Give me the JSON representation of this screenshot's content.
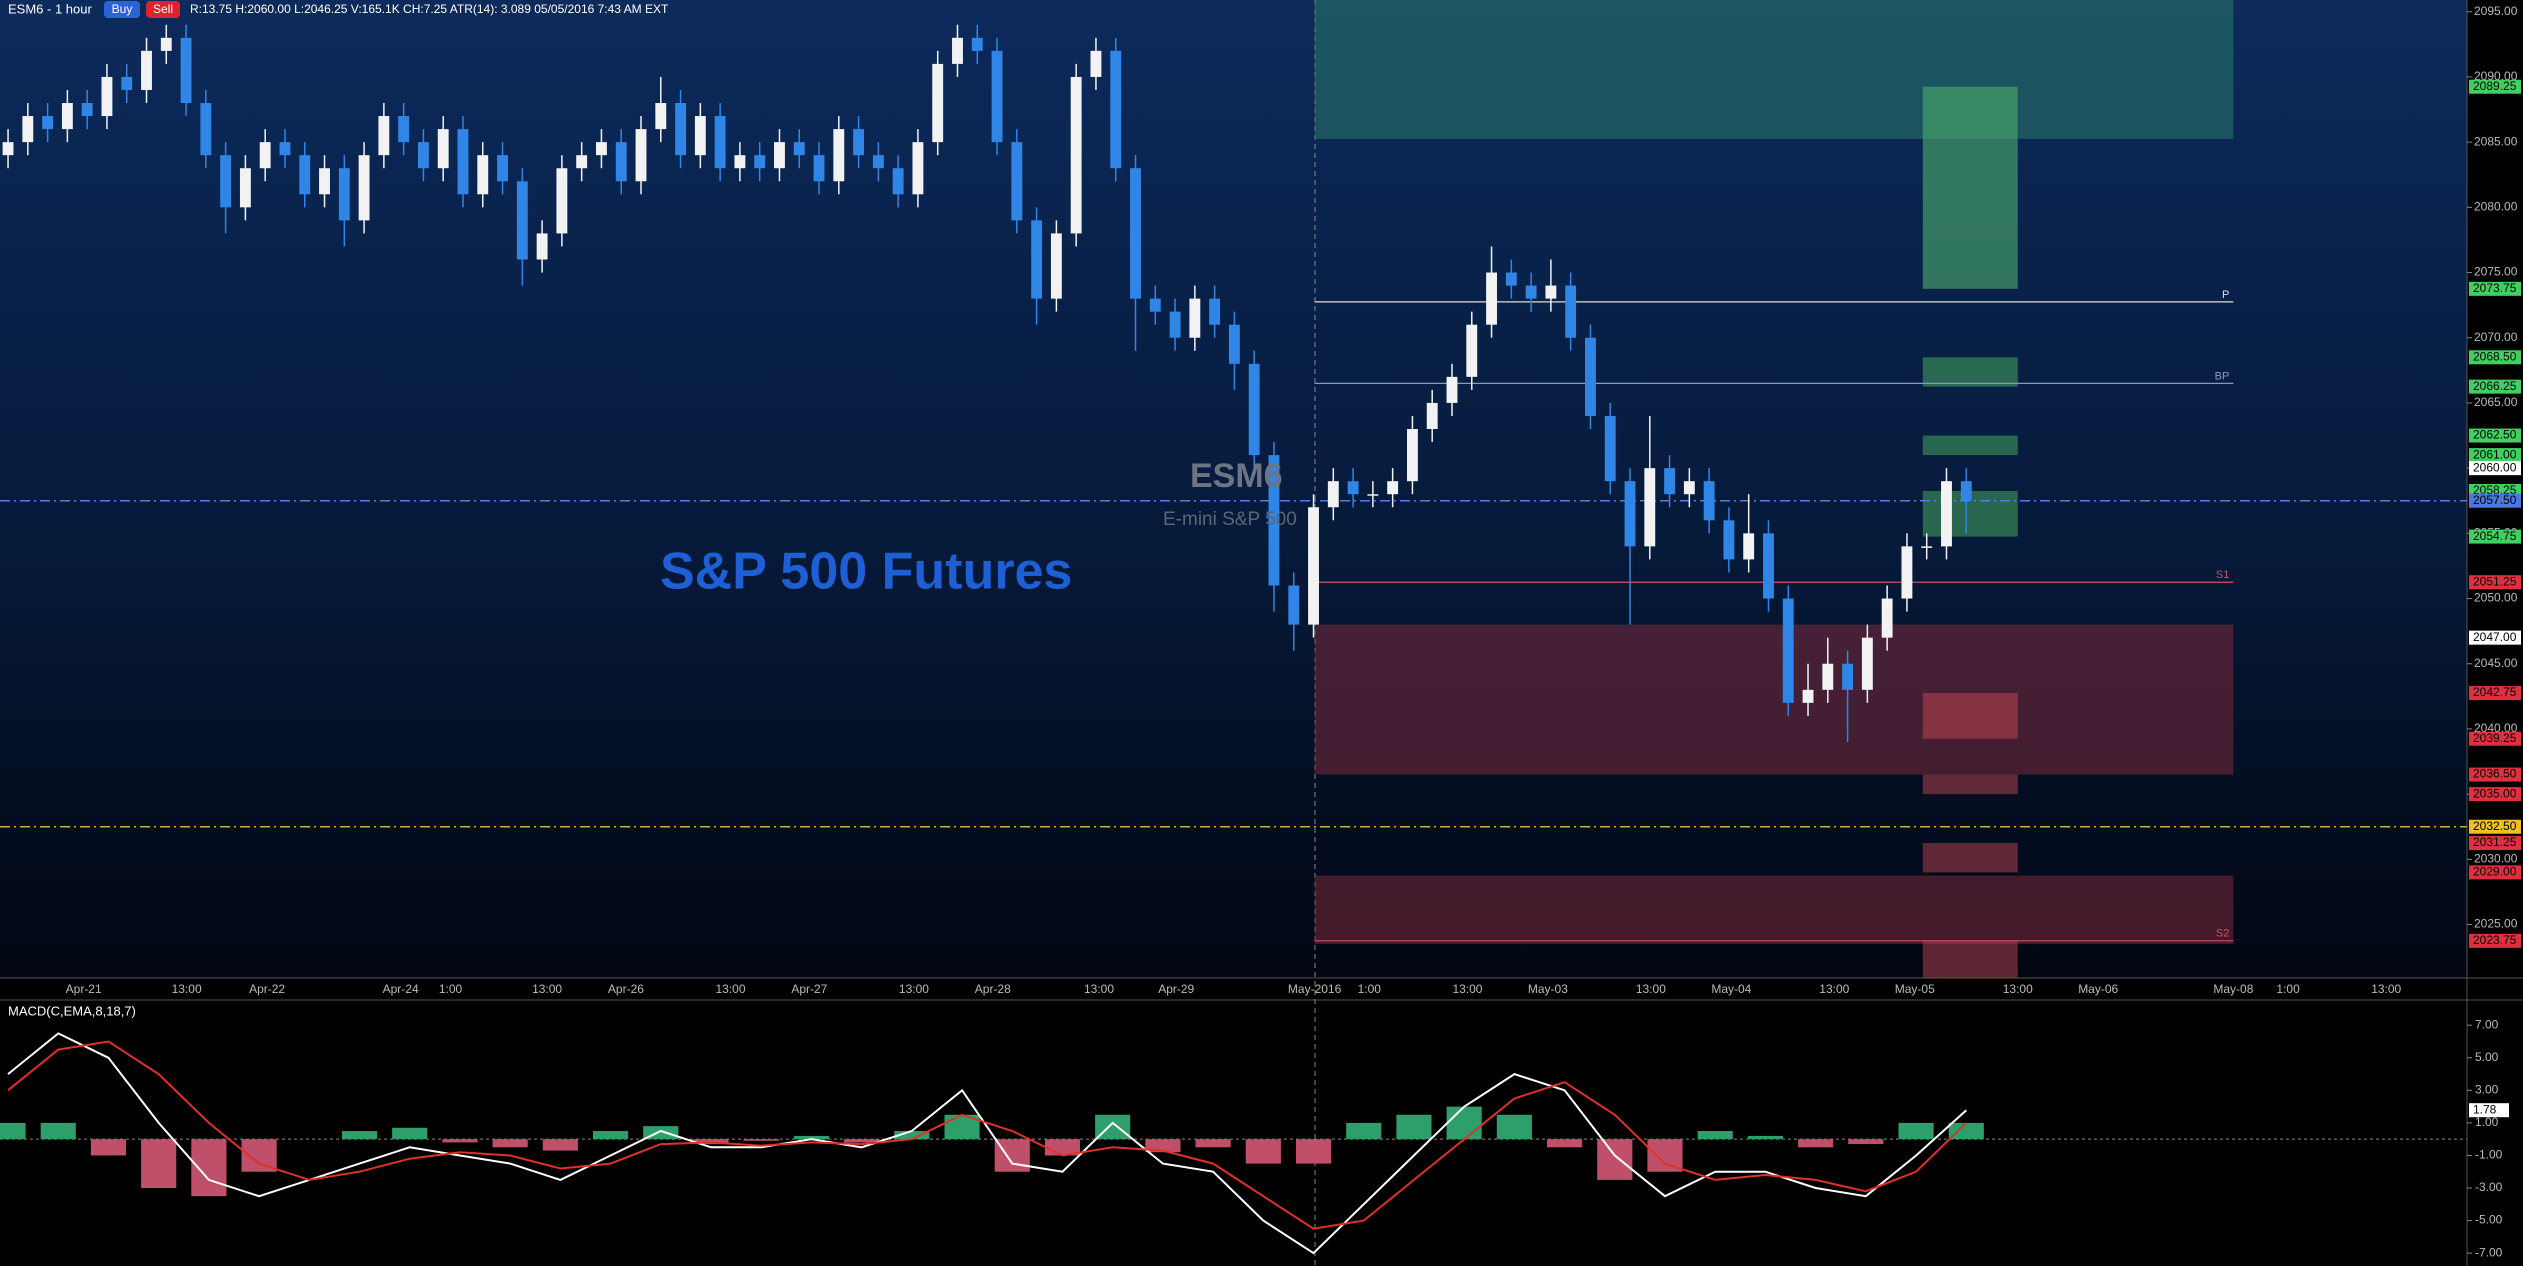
{
  "chart_data": [
    {
      "type": "candlestick",
      "symbol": "ESM6 - 1 hour",
      "buy": "Buy",
      "sell": "Sell",
      "info": "R:13.75  H:2060.00  L:2046.25  V:165.1K  CH:7.25  ATR(14): 3.089  05/05/2016 7:43 AM  EXT",
      "title": "S&P 500 Futures",
      "watermark": [
        "ESM6",
        "E-mini S&P 500"
      ],
      "up_color": "#f2f2f2",
      "down_color": "#2f86e6",
      "ylim": [
        2020.9,
        2095.9
      ],
      "yticks": [
        {
          "value": 2095,
          "label": "2095.00"
        },
        {
          "value": 2090,
          "label": "2090.00"
        },
        {
          "value": 2085,
          "label": "2085.00"
        },
        {
          "value": 2080,
          "label": "2080.00"
        },
        {
          "value": 2075,
          "label": "2075.00"
        },
        {
          "value": 2070,
          "label": "2070.00"
        },
        {
          "value": 2065,
          "label": "2065.00"
        },
        {
          "value": 2060,
          "label": "2060.00"
        },
        {
          "value": 2055,
          "label": "2055.00"
        },
        {
          "value": 2050,
          "label": "2050.00"
        },
        {
          "value": 2045,
          "label": "2045.00"
        },
        {
          "value": 2040,
          "label": "2040.00"
        },
        {
          "value": 2035,
          "label": "2035.00"
        },
        {
          "value": 2030,
          "label": "2030.00"
        },
        {
          "value": 2025,
          "label": "2025.00"
        }
      ],
      "xtick_labels": [
        "Apr-21",
        "13:00",
        "Apr-22",
        "Apr-24",
        "1:00",
        "13:00",
        "Apr-26",
        "13:00",
        "Apr-27",
        "13:00",
        "Apr-28",
        "13:00",
        "Apr-29",
        "May-2016",
        "1:00",
        "13:00",
        "May-03",
        "13:00",
        "May-04",
        "13:00",
        "May-05",
        "13:00",
        "May-06",
        "May-08",
        "1:00",
        "13:00"
      ],
      "ohlc": [
        [
          2084,
          2086,
          2083,
          2085
        ],
        [
          2085,
          2088,
          2084,
          2087
        ],
        [
          2087,
          2088,
          2085,
          2086
        ],
        [
          2086,
          2089,
          2085,
          2088
        ],
        [
          2088,
          2089,
          2086,
          2087
        ],
        [
          2087,
          2091,
          2086,
          2090
        ],
        [
          2090,
          2091,
          2088,
          2089
        ],
        [
          2089,
          2093,
          2088,
          2092
        ],
        [
          2092,
          2094,
          2091,
          2093
        ],
        [
          2093,
          2094,
          2087,
          2088
        ],
        [
          2088,
          2089,
          2083,
          2084
        ],
        [
          2084,
          2085,
          2078,
          2080
        ],
        [
          2080,
          2084,
          2079,
          2083
        ],
        [
          2083,
          2086,
          2082,
          2085
        ],
        [
          2085,
          2086,
          2083,
          2084
        ],
        [
          2084,
          2085,
          2080,
          2081
        ],
        [
          2081,
          2084,
          2080,
          2083
        ],
        [
          2083,
          2084,
          2077,
          2079
        ],
        [
          2079,
          2085,
          2078,
          2084
        ],
        [
          2084,
          2088,
          2083,
          2087
        ],
        [
          2087,
          2088,
          2084,
          2085
        ],
        [
          2085,
          2086,
          2082,
          2083
        ],
        [
          2083,
          2087,
          2082,
          2086
        ],
        [
          2086,
          2087,
          2080,
          2081
        ],
        [
          2081,
          2085,
          2080,
          2084
        ],
        [
          2084,
          2085,
          2081,
          2082
        ],
        [
          2082,
          2083,
          2074,
          2076
        ],
        [
          2076,
          2079,
          2075,
          2078
        ],
        [
          2078,
          2084,
          2077,
          2083
        ],
        [
          2083,
          2085,
          2082,
          2084
        ],
        [
          2084,
          2086,
          2083,
          2085
        ],
        [
          2085,
          2086,
          2081,
          2082
        ],
        [
          2082,
          2087,
          2081,
          2086
        ],
        [
          2086,
          2090,
          2085,
          2088
        ],
        [
          2088,
          2089,
          2083,
          2084
        ],
        [
          2084,
          2088,
          2083,
          2087
        ],
        [
          2087,
          2088,
          2082,
          2083
        ],
        [
          2083,
          2085,
          2082,
          2084
        ],
        [
          2084,
          2085,
          2082,
          2083
        ],
        [
          2083,
          2086,
          2082,
          2085
        ],
        [
          2085,
          2086,
          2083,
          2084
        ],
        [
          2084,
          2085,
          2081,
          2082
        ],
        [
          2082,
          2087,
          2081,
          2086
        ],
        [
          2086,
          2087,
          2083,
          2084
        ],
        [
          2084,
          2085,
          2082,
          2083
        ],
        [
          2083,
          2084,
          2080,
          2081
        ],
        [
          2081,
          2086,
          2080,
          2085
        ],
        [
          2085,
          2092,
          2084,
          2091
        ],
        [
          2091,
          2094,
          2090,
          2093
        ],
        [
          2093,
          2094,
          2091,
          2092
        ],
        [
          2092,
          2093,
          2084,
          2085
        ],
        [
          2085,
          2086,
          2078,
          2079
        ],
        [
          2079,
          2080,
          2071,
          2073
        ],
        [
          2073,
          2079,
          2072,
          2078
        ],
        [
          2078,
          2091,
          2077,
          2090
        ],
        [
          2090,
          2093,
          2089,
          2092
        ],
        [
          2092,
          2093,
          2082,
          2083
        ],
        [
          2083,
          2084,
          2069,
          2073
        ],
        [
          2073,
          2074,
          2071,
          2072
        ],
        [
          2072,
          2073,
          2069,
          2070
        ],
        [
          2070,
          2074,
          2069,
          2073
        ],
        [
          2073,
          2074,
          2070,
          2071
        ],
        [
          2071,
          2072,
          2066,
          2068
        ],
        [
          2068,
          2069,
          2060,
          2061
        ],
        [
          2061,
          2062,
          2049,
          2051
        ],
        [
          2051,
          2052,
          2046,
          2048
        ],
        [
          2048,
          2058,
          2047,
          2057
        ],
        [
          2057,
          2060,
          2056,
          2059
        ],
        [
          2059,
          2060,
          2057,
          2058
        ],
        [
          2058,
          2059,
          2057,
          2058
        ],
        [
          2058,
          2060,
          2057,
          2059
        ],
        [
          2059,
          2064,
          2058,
          2063
        ],
        [
          2063,
          2066,
          2062,
          2065
        ],
        [
          2065,
          2068,
          2064,
          2067
        ],
        [
          2067,
          2072,
          2066,
          2071
        ],
        [
          2071,
          2077,
          2070,
          2075
        ],
        [
          2075,
          2076,
          2073,
          2074
        ],
        [
          2074,
          2075,
          2072,
          2073
        ],
        [
          2073,
          2076,
          2072,
          2074
        ],
        [
          2074,
          2075,
          2069,
          2070
        ],
        [
          2070,
          2071,
          2063,
          2064
        ],
        [
          2064,
          2065,
          2058,
          2059
        ],
        [
          2059,
          2060,
          2048,
          2054
        ],
        [
          2054,
          2064,
          2053,
          2060
        ],
        [
          2060,
          2061,
          2057,
          2058
        ],
        [
          2058,
          2060,
          2057,
          2059
        ],
        [
          2059,
          2060,
          2055,
          2056
        ],
        [
          2056,
          2057,
          2052,
          2053
        ],
        [
          2053,
          2058,
          2052,
          2055
        ],
        [
          2055,
          2056,
          2049,
          2050
        ],
        [
          2050,
          2051,
          2041,
          2042
        ],
        [
          2042,
          2045,
          2041,
          2043
        ],
        [
          2043,
          2047,
          2042,
          2045
        ],
        [
          2045,
          2046,
          2039,
          2043
        ],
        [
          2043,
          2048,
          2042,
          2047
        ],
        [
          2047,
          2051,
          2046,
          2050
        ],
        [
          2050,
          2055,
          2049,
          2054
        ],
        [
          2054,
          2055,
          2053,
          2054
        ],
        [
          2054,
          2060,
          2053,
          2059
        ],
        [
          2059,
          2060,
          2055,
          2057.5
        ]
      ],
      "zones": [
        {
          "from": 2085.25,
          "to": 2095.9,
          "color": "#2a7a6a"
        },
        {
          "from": 2036.5,
          "to": 2048,
          "color": "#7a2a3a"
        },
        {
          "from": 2023.5,
          "to": 2028.75,
          "color": "#7a2a3a"
        }
      ],
      "targets": [
        {
          "from": 2073.75,
          "to": 2089.25,
          "color": "#4caf6a"
        },
        {
          "from": 2066.25,
          "to": 2068.5,
          "color": "#3f9a5a"
        },
        {
          "from": 2061,
          "to": 2062.5,
          "color": "#3f9a5a"
        },
        {
          "from": 2054.75,
          "to": 2058.25,
          "color": "#3f9a5a"
        },
        {
          "from": 2039.25,
          "to": 2042.75,
          "color": "#b0404e"
        },
        {
          "from": 2035,
          "to": 2036.5,
          "color": "#a03a48"
        },
        {
          "from": 2029,
          "to": 2031.25,
          "color": "#a03a48"
        },
        {
          "from": 2020.9,
          "to": 2023.75,
          "color": "#a03a48"
        }
      ],
      "hlines": [
        {
          "value": 2072.75,
          "label": "P",
          "color": "#dddddd"
        },
        {
          "value": 2066.5,
          "label": "BP",
          "color": "#8899bb"
        },
        {
          "value": 2051.25,
          "label": "S1",
          "color": "#d0506a"
        },
        {
          "value": 2023.75,
          "label": "S2",
          "color": "#d0506a"
        }
      ],
      "full_lines": [
        {
          "value": 2057.5,
          "color": "#5a7adf"
        },
        {
          "value": 2032.5,
          "color": "#c8b040"
        }
      ],
      "levels": [
        {
          "value": 2089.25,
          "label": "2089.25",
          "color": "#3fd060"
        },
        {
          "value": 2073.75,
          "label": "2073.75",
          "color": "#3fd060"
        },
        {
          "value": 2068.5,
          "label": "2068.50",
          "color": "#3fd060"
        },
        {
          "value": 2066.25,
          "label": "2066.25",
          "color": "#3fd060"
        },
        {
          "value": 2062.5,
          "label": "2062.50",
          "color": "#3fd060"
        },
        {
          "value": 2061,
          "label": "2061.00",
          "color": "#3fd060"
        },
        {
          "value": 2060,
          "label": "2060.00",
          "color": "#ffffff"
        },
        {
          "value": 2058.25,
          "label": "2058.25",
          "color": "#3fd060"
        },
        {
          "value": 2057.5,
          "label": "2057.50",
          "color": "#4a78e0"
        },
        {
          "value": 2054.75,
          "label": "2054.75",
          "color": "#3fd060"
        },
        {
          "value": 2051.25,
          "label": "2051.25",
          "color": "#e03040"
        },
        {
          "value": 2047,
          "label": "2047.00",
          "color": "#ffffff"
        },
        {
          "value": 2042.75,
          "label": "2042.75",
          "color": "#e03040"
        },
        {
          "value": 2039.25,
          "label": "2039.25",
          "color": "#e03040"
        },
        {
          "value": 2036.5,
          "label": "2036.50",
          "color": "#e03040"
        },
        {
          "value": 2035,
          "label": "2035.00",
          "color": "#e03040"
        },
        {
          "value": 2032.5,
          "label": "2032.50",
          "color": "#f0c020"
        },
        {
          "value": 2031.25,
          "label": "2031.25",
          "color": "#e03040"
        },
        {
          "value": 2029,
          "label": "2029.00",
          "color": "#e03040"
        },
        {
          "value": 2023.75,
          "label": "2023.75",
          "color": "#e03040"
        }
      ]
    },
    {
      "type": "macd",
      "title": "MACD(C,EMA,8,18,7)",
      "ylim": [
        -7.79,
        8.18
      ],
      "yticks": [
        {
          "value": 7,
          "label": "7.00"
        },
        {
          "value": 5,
          "label": "5.00"
        },
        {
          "value": 3,
          "label": "3.00"
        },
        {
          "value": 1,
          "label": "1.00"
        },
        {
          "value": -1,
          "label": "-1.00"
        },
        {
          "value": -3,
          "label": "-3.00"
        },
        {
          "value": -5,
          "label": "-5.00"
        },
        {
          "value": -7,
          "label": "-7.00"
        }
      ],
      "marker": {
        "value": 1.78,
        "label": "1.78"
      },
      "pos_color": "#2e9e6a",
      "neg_color": "#c0506a",
      "histogram": [
        1,
        1,
        -1,
        -3,
        -3.5,
        -2,
        0,
        0.5,
        0.7,
        -0.2,
        -0.5,
        -0.7,
        0.5,
        0.8,
        -0.3,
        -0.1,
        0.2,
        -0.2,
        0.5,
        1.5,
        -2,
        -1,
        1.5,
        -0.8,
        -0.5,
        -1.5,
        -1.5,
        1,
        1.5,
        2,
        1.5,
        -0.5,
        -2.5,
        -2,
        0.5,
        0.2,
        -0.5,
        -0.3,
        1,
        1
      ],
      "series": [
        {
          "color": "#ffffff",
          "values": [
            4,
            6.5,
            5,
            1,
            -2.5,
            -3.5,
            -2.5,
            -1.5,
            -0.5,
            -1,
            -1.5,
            -2.5,
            -1,
            0.5,
            -0.5,
            -0.5,
            0,
            -0.5,
            0.5,
            3,
            -1.5,
            -2,
            1,
            -1.5,
            -2,
            -5,
            -7,
            -4,
            -1,
            2,
            4,
            3,
            -1,
            -3.5,
            -2,
            -2,
            -3,
            -3.5,
            -1,
            1.78
          ]
        },
        {
          "color": "#e0302a",
          "values": [
            3,
            5.5,
            6,
            4,
            1,
            -1.5,
            -2.5,
            -2,
            -1.2,
            -0.8,
            -1,
            -1.8,
            -1.5,
            -0.3,
            -0.2,
            -0.4,
            -0.2,
            -0.3,
            0,
            1.5,
            0.5,
            -1,
            -0.5,
            -0.7,
            -1.5,
            -3.5,
            -5.5,
            -5,
            -2.5,
            0,
            2.5,
            3.5,
            1.5,
            -1.5,
            -2.5,
            -2.2,
            -2.5,
            -3.2,
            -2,
            1
          ]
        }
      ]
    }
  ]
}
